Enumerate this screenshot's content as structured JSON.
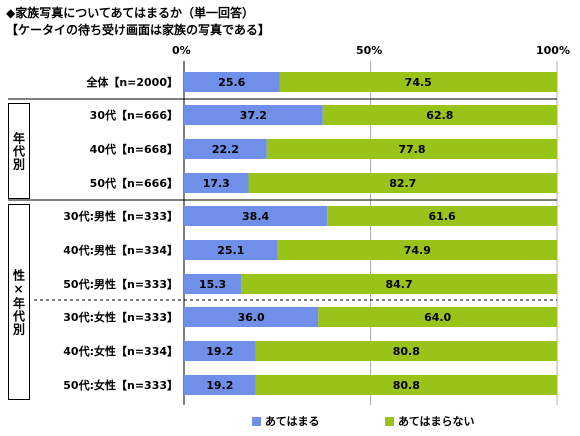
{
  "header": {
    "title": "◆家族写真についてあてはまるか（単一回答）",
    "subtitle": "【ケータイの待ち受け画面は家族の写真である】"
  },
  "colors": {
    "positive": "#6f8fe8",
    "negative": "#99c318"
  },
  "groups": {
    "age": "年代別",
    "gender_age": "性×年代別"
  },
  "legend": [
    "あてはまる",
    "あてはまらない"
  ],
  "chart_data": {
    "type": "bar",
    "orientation": "horizontal-stacked-100",
    "title": "家族写真についてあてはまるか（単一回答）",
    "subtitle": "ケータイの待ち受け画面は家族の写真である",
    "x_ticks": [
      "0%",
      "50%",
      "100%"
    ],
    "xlim": [
      0,
      100
    ],
    "categories": [
      "全体【n=2000】",
      "30代【n=666】",
      "40代【n=668】",
      "50代【n=666】",
      "30代:男性【n=333】",
      "40代:男性【n=334】",
      "50代:男性【n=333】",
      "30代:女性【n=333】",
      "40代:女性【n=334】",
      "50代:女性【n=333】"
    ],
    "series": [
      {
        "name": "あてはまる",
        "values": [
          25.6,
          37.2,
          22.2,
          17.3,
          38.4,
          25.1,
          15.3,
          36.0,
          19.2,
          19.2
        ]
      },
      {
        "name": "あてはまらない",
        "values": [
          74.5,
          62.8,
          77.8,
          82.7,
          61.6,
          74.9,
          84.7,
          64.0,
          80.8,
          80.8
        ]
      }
    ],
    "value_labels": [
      [
        "25.6",
        "37.2",
        "22.2",
        "17.3",
        "38.4",
        "25.1",
        "15.3",
        "36.0",
        "19.2",
        "19.2"
      ],
      [
        "74.5",
        "62.8",
        "77.8",
        "82.7",
        "61.6",
        "74.9",
        "84.7",
        "64.0",
        "80.8",
        "80.8"
      ]
    ],
    "legend_position": "bottom"
  }
}
